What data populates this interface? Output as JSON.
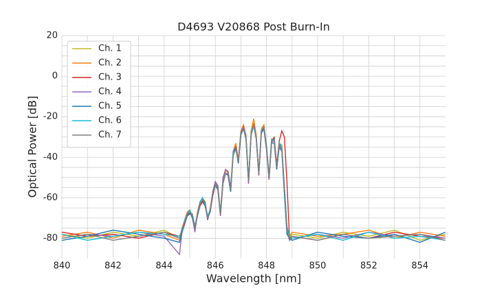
{
  "chart_data": {
    "type": "line",
    "title": "D4693 V20868 Post Burn-In",
    "x_label": "Wavelength [nm]",
    "y_label": "Optical Power [dB]",
    "x": [
      840,
      841,
      842,
      843,
      844,
      844.6,
      844.7,
      844.8,
      844.9,
      845.0,
      845.1,
      845.2,
      845.3,
      845.4,
      845.5,
      845.6,
      845.7,
      845.8,
      845.9,
      846.0,
      846.1,
      846.2,
      846.3,
      846.4,
      846.5,
      846.6,
      846.7,
      846.8,
      846.9,
      847.0,
      847.1,
      847.2,
      847.3,
      847.4,
      847.5,
      847.6,
      847.7,
      847.8,
      847.9,
      848.0,
      848.1,
      848.2,
      848.3,
      848.4,
      848.5,
      848.6,
      848.7,
      848.8,
      848.9,
      849,
      850,
      851,
      852,
      853,
      854,
      855
    ],
    "series": [
      {
        "name": "Ch. 1",
        "color": "#bcbd22",
        "values": [
          -78,
          -80,
          -77,
          -79,
          -76,
          -80,
          -76,
          -72,
          -68,
          -67,
          -69,
          -75,
          -68,
          -63,
          -61,
          -63,
          -70,
          -66,
          -58,
          -53,
          -55,
          -68,
          -52,
          -46,
          -48,
          -56,
          -38,
          -34,
          -42,
          -28,
          -25,
          -30,
          -52,
          -28,
          -23,
          -30,
          -48,
          -27,
          -25,
          -35,
          -50,
          -32,
          -30,
          -45,
          -34,
          -35,
          -55,
          -75,
          -80,
          -78,
          -80,
          -77,
          -79,
          -76,
          -81,
          -78
        ]
      },
      {
        "name": "Ch. 2",
        "color": "#ff7f0e",
        "values": [
          -79,
          -77,
          -80,
          -76,
          -78,
          -81,
          -75,
          -71,
          -67,
          -66,
          -70,
          -76,
          -67,
          -62,
          -60,
          -62,
          -71,
          -65,
          -57,
          -52,
          -54,
          -67,
          -51,
          -47,
          -47,
          -55,
          -37,
          -33,
          -41,
          -27,
          -24,
          -29,
          -51,
          -27,
          -21,
          -29,
          -47,
          -26,
          -24,
          -34,
          -49,
          -31,
          -31,
          -44,
          -33,
          -34,
          -56,
          -76,
          -79,
          -77,
          -79,
          -78,
          -76,
          -80,
          -77,
          -79
        ]
      },
      {
        "name": "Ch. 3",
        "color": "#d62728",
        "values": [
          -77,
          -79,
          -78,
          -80,
          -77,
          -79,
          -77,
          -73,
          -69,
          -68,
          -68,
          -74,
          -69,
          -64,
          -62,
          -64,
          -69,
          -67,
          -59,
          -54,
          -56,
          -69,
          -53,
          -48,
          -49,
          -57,
          -39,
          -35,
          -43,
          -29,
          -25,
          -31,
          -53,
          -29,
          -24,
          -31,
          -49,
          -28,
          -26,
          -36,
          -51,
          -33,
          -30,
          -44,
          -32,
          -27,
          -30,
          -52,
          -80,
          -79,
          -81,
          -78,
          -80,
          -77,
          -79,
          -80
        ]
      },
      {
        "name": "Ch. 4",
        "color": "#9467bd",
        "values": [
          -80,
          -78,
          -79,
          -77,
          -79,
          -88,
          -76,
          -72,
          -68,
          -67,
          -69,
          -77,
          -68,
          -63,
          -61,
          -63,
          -71,
          -66,
          -57,
          -52,
          -54,
          -69,
          -50,
          -46,
          -47,
          -55,
          -37,
          -35,
          -42,
          -28,
          -25,
          -30,
          -53,
          -28,
          -24,
          -30,
          -49,
          -27,
          -25,
          -35,
          -51,
          -32,
          -31,
          -46,
          -34,
          -36,
          -57,
          -77,
          -81,
          -80,
          -78,
          -80,
          -77,
          -79,
          -78,
          -80
        ]
      },
      {
        "name": "Ch. 5",
        "color": "#1f77b4",
        "values": [
          -81,
          -79,
          -76,
          -78,
          -80,
          -82,
          -77,
          -72,
          -69,
          -67,
          -70,
          -75,
          -69,
          -63,
          -61,
          -64,
          -70,
          -67,
          -58,
          -53,
          -56,
          -68,
          -52,
          -48,
          -49,
          -57,
          -38,
          -35,
          -43,
          -28,
          -26,
          -31,
          -52,
          -29,
          -24,
          -31,
          -48,
          -28,
          -26,
          -36,
          -50,
          -33,
          -33,
          -46,
          -35,
          -37,
          -58,
          -78,
          -80,
          -81,
          -77,
          -79,
          -80,
          -78,
          -82,
          -77
        ]
      },
      {
        "name": "Ch. 6",
        "color": "#17becf",
        "values": [
          -78,
          -81,
          -79,
          -77,
          -78,
          -79,
          -76,
          -71,
          -68,
          -66,
          -69,
          -74,
          -68,
          -62,
          -60,
          -63,
          -69,
          -66,
          -58,
          -54,
          -55,
          -67,
          -52,
          -48,
          -48,
          -56,
          -38,
          -36,
          -42,
          -29,
          -26,
          -30,
          -51,
          -28,
          -25,
          -30,
          -48,
          -27,
          -25,
          -34,
          -49,
          -31,
          -32,
          -45,
          -33,
          -35,
          -54,
          -74,
          -79,
          -80,
          -78,
          -81,
          -77,
          -80,
          -79,
          -81
        ]
      },
      {
        "name": "Ch. 7",
        "color": "#7f7f7f",
        "values": [
          -80,
          -78,
          -81,
          -79,
          -77,
          -80,
          -75,
          -72,
          -68,
          -67,
          -68,
          -75,
          -68,
          -63,
          -61,
          -62,
          -70,
          -66,
          -58,
          -53,
          -55,
          -68,
          -52,
          -48,
          -48,
          -56,
          -39,
          -36,
          -42,
          -29,
          -26,
          -30,
          -52,
          -28,
          -24,
          -30,
          -48,
          -27,
          -25,
          -35,
          -50,
          -32,
          -32,
          -45,
          -34,
          -36,
          -55,
          -76,
          -81,
          -79,
          -81,
          -78,
          -80,
          -79,
          -78,
          -81
        ]
      }
    ],
    "xlim": [
      840,
      855
    ],
    "xticks": [
      840,
      842,
      844,
      846,
      848,
      850,
      852,
      854
    ],
    "ylim": [
      -90,
      20
    ],
    "yticks": [
      -80,
      -60,
      -40,
      -20,
      0,
      20
    ],
    "grid": true,
    "legend": "upper left"
  }
}
